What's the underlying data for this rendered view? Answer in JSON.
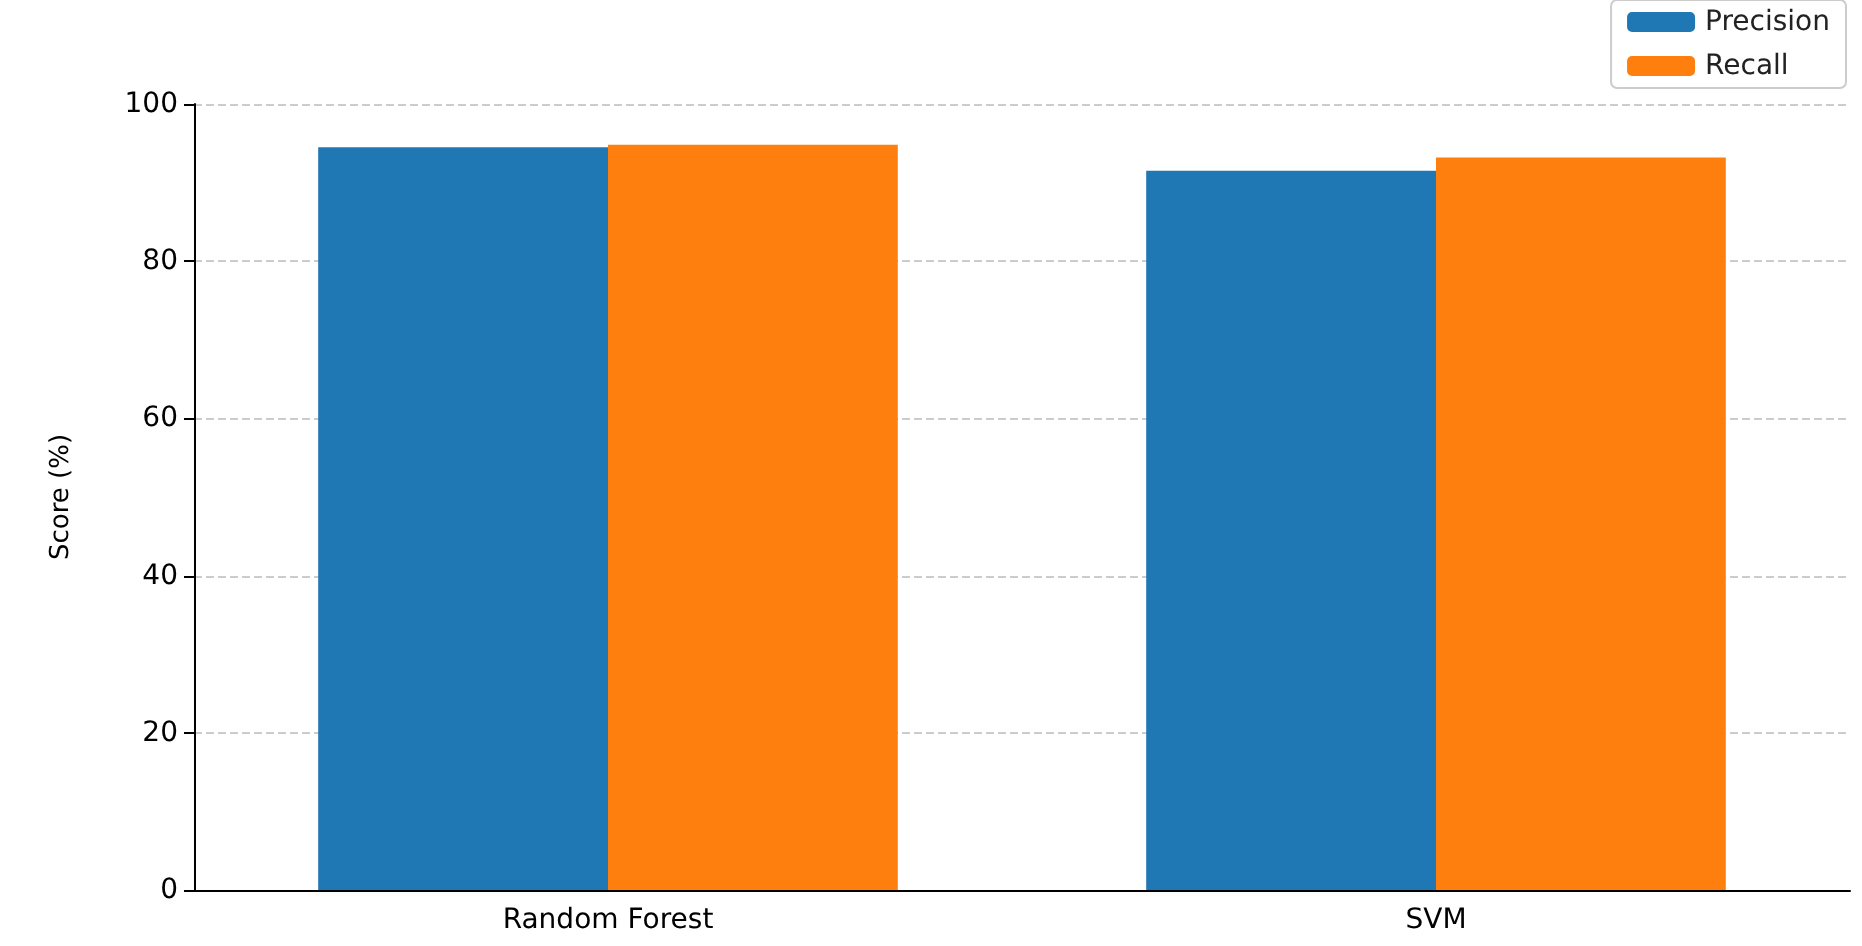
{
  "chart_data": {
    "type": "bar",
    "ylabel": "Score (%)",
    "categories": [
      "Random Forest",
      "SVM"
    ],
    "series": [
      {
        "name": "Precision",
        "color": "#1f77b4",
        "values": [
          94.5,
          91.5
        ]
      },
      {
        "name": "Recall",
        "color": "#ff7f0e",
        "values": [
          94.8,
          93.2
        ]
      }
    ],
    "ylim": [
      0,
      100
    ],
    "yticks": [
      0,
      20,
      40,
      60,
      80,
      100
    ],
    "grid": "y",
    "legend": "top right"
  }
}
